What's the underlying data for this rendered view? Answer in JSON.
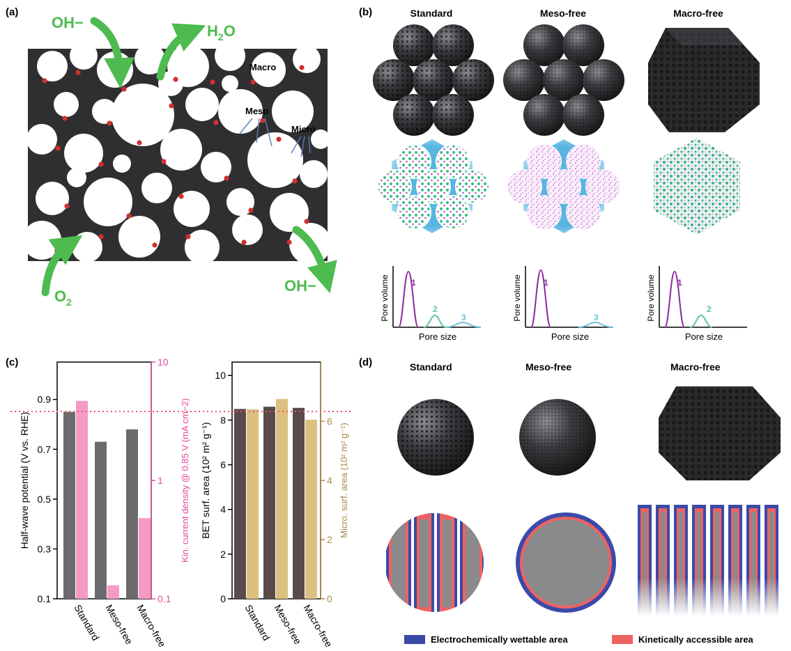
{
  "panel_a": {
    "label": "(a)",
    "oh_top": "OH−",
    "h2o_main": "H",
    "h2o_sub": "2",
    "h2o_end": "O",
    "o2_main": "O",
    "o2_sub": "2",
    "oh_bottom": "OH−",
    "macro": "Macro",
    "meso": "Meso",
    "micro": "Micro"
  },
  "panel_b": {
    "label": "(b)",
    "columns": [
      "Standard",
      "Meso-free",
      "Macro-free"
    ],
    "ylabel": "Pore volume",
    "xlabel": "Pore size",
    "peak_labels": [
      "1",
      "2",
      "3"
    ]
  },
  "panel_c": {
    "label": "(c)",
    "chart_data": [
      {
        "type": "bar",
        "categories": [
          "Standard",
          "Meso-free",
          "Macro-free"
        ],
        "series": [
          {
            "name": "Half-wave potential",
            "axis": "left",
            "values": [
              0.85,
              0.73,
              0.78
            ],
            "color": "#6b6b6e"
          },
          {
            "name": "Kin. current density",
            "axis": "right",
            "values": [
              4.7,
              0.13,
              0.48
            ],
            "color": "#f49ac3"
          }
        ],
        "ylabel": "Half-wave potential (V vs. RHE)",
        "y2label": "Kin. current density @ 0.85 V (mA cm−2)",
        "ylim": [
          0.1,
          1.05
        ],
        "yticks": [
          "0.1",
          "0.3",
          "0.5",
          "0.7",
          "0.9"
        ],
        "y2scale": "log",
        "y2lim": [
          0.1,
          10
        ],
        "y2ticks": [
          "0.1",
          "1",
          "10"
        ],
        "reference_line": 0.85
      },
      {
        "type": "bar",
        "categories": [
          "Standard",
          "Meso-free",
          "Macro-free"
        ],
        "series": [
          {
            "name": "BET surf. area",
            "axis": "left",
            "values": [
              8.5,
              8.6,
              8.55
            ],
            "color": "#5a4a4a"
          },
          {
            "name": "Micro. surf. area",
            "axis": "right",
            "values": [
              6.4,
              6.75,
              6.05
            ],
            "color": "#dbc07f"
          }
        ],
        "ylabel": "BET surf. area (10² m² g⁻¹)",
        "y2label": "Micro. surf. area (10² m² g⁻¹)",
        "ylim": [
          0,
          10.6
        ],
        "yticks": [
          "0",
          "2",
          "4",
          "6",
          "8",
          "10"
        ],
        "y2lim": [
          0,
          8
        ],
        "y2ticks": [
          "0",
          "2",
          "4",
          "6"
        ],
        "reference_line": 8.5
      }
    ]
  },
  "panel_d": {
    "label": "(d)",
    "columns": [
      "Standard",
      "Meso-free",
      "Macro-free"
    ],
    "legend": [
      "Electrochemically wettable area",
      "Kinetically accessible area"
    ],
    "colors": {
      "wettable": "#3b4aa8",
      "kinetic": "#ef6262",
      "core": "#8a8a8c"
    }
  }
}
